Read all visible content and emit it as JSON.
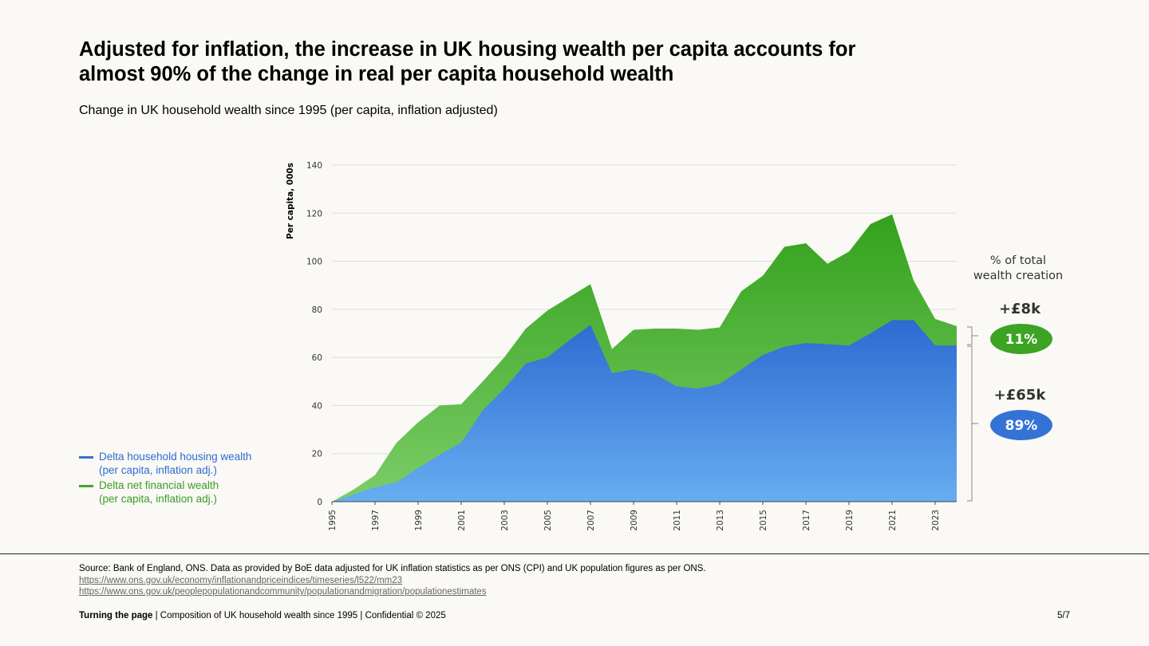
{
  "title": "Adjusted for inflation, the increase in UK housing wealth per capita accounts for almost 90% of the change in real per capita household wealth",
  "subtitle": "Change in UK household wealth since 1995 (per capita, inflation adjusted)",
  "chart_data": {
    "type": "area",
    "stacked": true,
    "ylabel": "Per capita, 000s",
    "ylim": [
      0,
      140
    ],
    "yticks": [
      0,
      20,
      40,
      60,
      80,
      100,
      120,
      140
    ],
    "grid": true,
    "legend_position": "bottom-left",
    "x": [
      1995,
      1996,
      1997,
      1998,
      1999,
      2000,
      2001,
      2002,
      2003,
      2004,
      2005,
      2006,
      2007,
      2008,
      2009,
      2010,
      2011,
      2012,
      2013,
      2014,
      2015,
      2016,
      2017,
      2018,
      2019,
      2020,
      2021,
      2022,
      2023,
      2024
    ],
    "xtick_labels": [
      "1995",
      "1997",
      "1999",
      "2001",
      "2003",
      "2005",
      "2007",
      "2009",
      "2011",
      "2013",
      "2015",
      "2017",
      "2019",
      "2021",
      "2023"
    ],
    "series": [
      {
        "name": "Delta household housing wealth",
        "name_line2": "(per capita, inflation adj.)",
        "color": "#3572d4",
        "values": [
          0,
          3,
          6,
          8,
          14,
          19.5,
          24.5,
          38,
          47,
          57.5,
          60,
          67,
          73.5,
          53.5,
          55,
          53,
          48,
          47,
          49,
          55,
          61,
          64.5,
          66,
          65.5,
          65,
          70,
          75.5,
          75.5,
          65,
          65
        ]
      },
      {
        "name": "Delta net financial wealth",
        "name_line2": "(per capita, inflation adj.)",
        "color": "#3fa72a",
        "total_values": [
          0,
          5,
          11,
          24.5,
          33,
          40,
          40.5,
          50,
          60,
          72,
          79.5,
          85,
          90.5,
          63.5,
          71.5,
          72,
          72,
          71.5,
          72.5,
          87.5,
          94,
          106,
          107.5,
          99,
          104,
          115.5,
          119.5,
          92,
          76,
          73
        ]
      }
    ],
    "side_panel": {
      "heading_line1": "% of total",
      "heading_line2": "wealth creation",
      "items": [
        {
          "amount": "+£8k",
          "share": "11%",
          "color": "#3ca323"
        },
        {
          "amount": "+£65k",
          "share": "89%",
          "color": "#3473d5"
        }
      ]
    }
  },
  "source": {
    "text": "Source: Bank of England, ONS. Data as provided by BoE data adjusted for UK inflation statistics as per ONS (CPI) and UK population figures as per ONS.",
    "links": [
      "https://www.ons.gov.uk/economy/inflationandpriceindices/timeseries/l522/mm23",
      "https://www.ons.gov.uk/peoplepopulationandcommunity/populationandmigration/populationestimates"
    ]
  },
  "footer": {
    "brand": "Turning the page",
    "text": " | Composition of UK household wealth since 1995 | Confidential © 2025",
    "page": "5/7"
  }
}
